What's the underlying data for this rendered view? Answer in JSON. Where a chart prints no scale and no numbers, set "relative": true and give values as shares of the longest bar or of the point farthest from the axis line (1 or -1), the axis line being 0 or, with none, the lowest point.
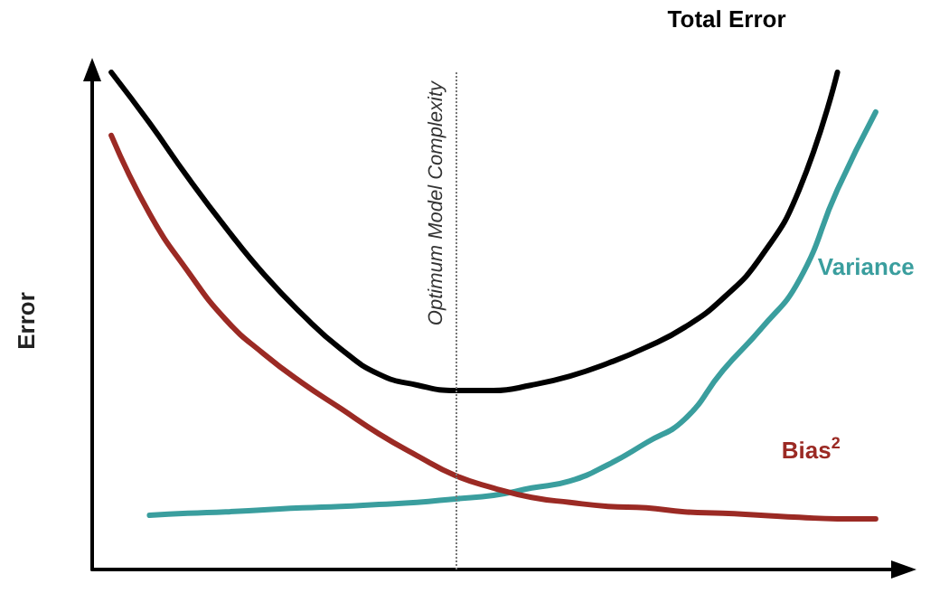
{
  "chart_data": {
    "type": "line",
    "relative": true,
    "ylabel": "Error",
    "categories": [
      null,
      null,
      null,
      null,
      null,
      null,
      null,
      null,
      null,
      null,
      null,
      null,
      null,
      null,
      null,
      null,
      null,
      null,
      null,
      null,
      null
    ],
    "series": [
      {
        "name": "Total Error",
        "color": "#000000",
        "values": [
          1.0,
          0.898,
          0.789,
          0.687,
          0.593,
          0.513,
          0.444,
          0.393,
          0.371,
          0.36,
          0.36,
          0.371,
          0.389,
          0.415,
          0.447,
          0.487,
          0.545,
          0.629,
          0.764,
          1.0,
          null
        ]
      },
      {
        "name": "Variance",
        "color": "#3a9e9e",
        "values": [
          null,
          0.109,
          0.113,
          0.116,
          0.12,
          0.124,
          0.127,
          0.131,
          0.135,
          0.142,
          0.149,
          0.164,
          0.178,
          0.211,
          0.255,
          0.302,
          0.4,
          0.484,
          0.582,
          0.764,
          0.92
        ]
      },
      {
        "name": "Bias$^{2}$",
        "color": "#9b2a24",
        "values": [
          0.873,
          0.716,
          0.6,
          0.502,
          0.433,
          0.375,
          0.324,
          0.273,
          0.229,
          0.189,
          0.164,
          0.145,
          0.135,
          0.127,
          0.124,
          0.116,
          0.113,
          0.109,
          0.105,
          0.102,
          0.102
        ]
      }
    ],
    "annotations": [
      "Optimum Model Complexity"
    ],
    "grid": false,
    "legend": false,
    "marker": "none",
    "line_style": "solid"
  }
}
